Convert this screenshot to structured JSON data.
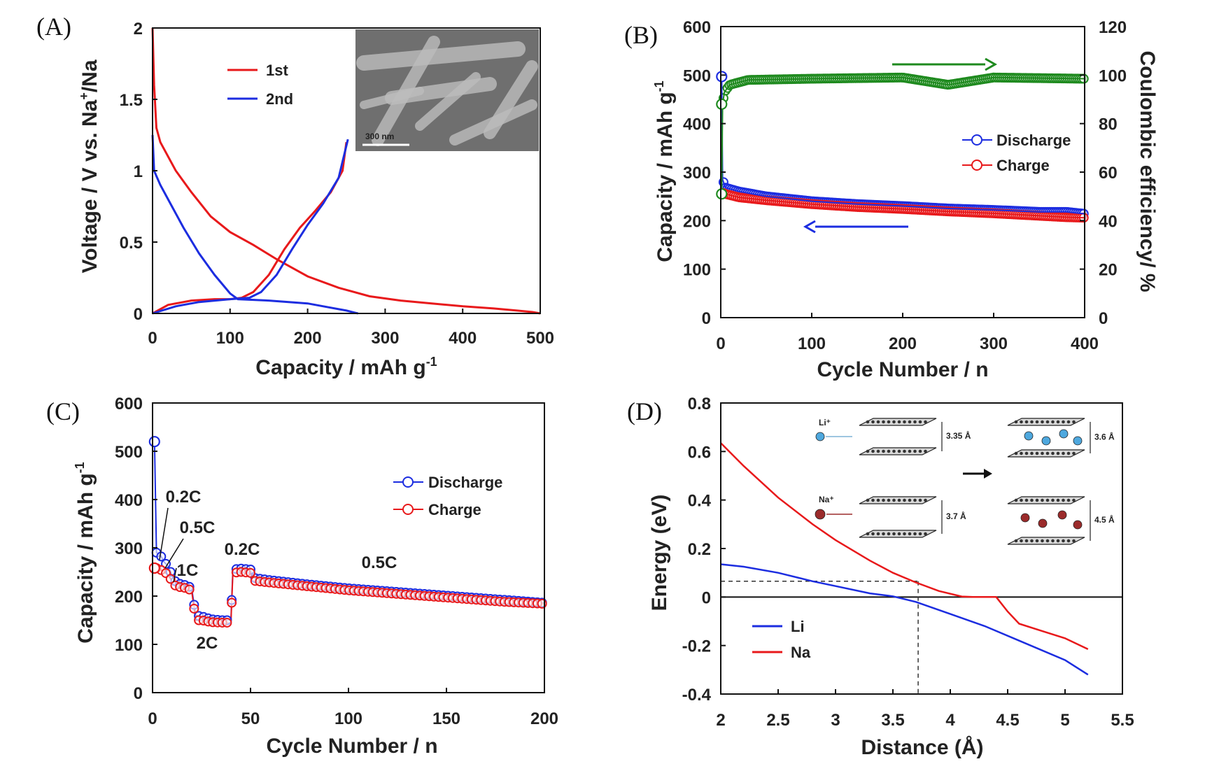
{
  "colors": {
    "red": "#e8191b",
    "blue": "#1c2de0",
    "green": "#1e8a1e",
    "axis": "#111111"
  },
  "chart_data": [
    {
      "panel": "(A)",
      "type": "line",
      "xlabel": "Capacity / mAh g",
      "xlabel_sup": "-1",
      "ylabel": "Voltage / V vs. Na",
      "ylabel_sup": "+",
      "ylabel_tail": "/Na",
      "xlim": [
        0,
        500
      ],
      "ylim": [
        0,
        2
      ],
      "xticks": [
        "0",
        "100",
        "200",
        "300",
        "400",
        "500"
      ],
      "yticks": [
        "0",
        "0.5",
        "1",
        "1.5",
        "2"
      ],
      "legend": [
        "1st",
        "2nd"
      ],
      "inset_label": "300 nm",
      "series": [
        {
          "name": "1st discharge",
          "color": "red",
          "points": [
            [
              0,
              2.0
            ],
            [
              2,
              1.6
            ],
            [
              5,
              1.3
            ],
            [
              10,
              1.2
            ],
            [
              30,
              1.0
            ],
            [
              50,
              0.85
            ],
            [
              75,
              0.68
            ],
            [
              100,
              0.57
            ],
            [
              130,
              0.48
            ],
            [
              160,
              0.38
            ],
            [
              200,
              0.26
            ],
            [
              240,
              0.18
            ],
            [
              280,
              0.12
            ],
            [
              320,
              0.09
            ],
            [
              360,
              0.07
            ],
            [
              400,
              0.05
            ],
            [
              440,
              0.035
            ],
            [
              470,
              0.02
            ],
            [
              490,
              0.01
            ],
            [
              500,
              0.0
            ]
          ]
        },
        {
          "name": "1st charge",
          "color": "red",
          "points": [
            [
              0,
              0.0
            ],
            [
              20,
              0.06
            ],
            [
              50,
              0.09
            ],
            [
              80,
              0.1
            ],
            [
              100,
              0.1
            ],
            [
              115,
              0.11
            ],
            [
              130,
              0.15
            ],
            [
              150,
              0.27
            ],
            [
              170,
              0.45
            ],
            [
              190,
              0.6
            ],
            [
              210,
              0.72
            ],
            [
              230,
              0.85
            ],
            [
              245,
              1.0
            ],
            [
              250,
              1.2
            ]
          ]
        },
        {
          "name": "2nd discharge",
          "color": "blue",
          "points": [
            [
              0,
              1.25
            ],
            [
              2,
              1.0
            ],
            [
              10,
              0.9
            ],
            [
              25,
              0.75
            ],
            [
              40,
              0.6
            ],
            [
              60,
              0.42
            ],
            [
              80,
              0.27
            ],
            [
              100,
              0.14
            ],
            [
              110,
              0.1
            ],
            [
              150,
              0.09
            ],
            [
              200,
              0.07
            ],
            [
              230,
              0.04
            ],
            [
              250,
              0.02
            ],
            [
              265,
              0.0
            ]
          ]
        },
        {
          "name": "2nd charge",
          "color": "blue",
          "points": [
            [
              0,
              0.0
            ],
            [
              30,
              0.05
            ],
            [
              60,
              0.08
            ],
            [
              100,
              0.1
            ],
            [
              125,
              0.11
            ],
            [
              140,
              0.15
            ],
            [
              160,
              0.27
            ],
            [
              180,
              0.45
            ],
            [
              200,
              0.62
            ],
            [
              220,
              0.77
            ],
            [
              240,
              0.95
            ],
            [
              252,
              1.22
            ]
          ]
        }
      ]
    },
    {
      "panel": "(B)",
      "type": "scatter",
      "xlabel": "Cycle Number / n",
      "ylabel": "Capacity / mAh g",
      "ylabel_sup": "-1",
      "y2label": "Coulombic efficiency/ %",
      "xlim": [
        0,
        400
      ],
      "ylim": [
        0,
        600
      ],
      "y2lim": [
        0,
        120
      ],
      "xticks": [
        "0",
        "100",
        "200",
        "300",
        "400"
      ],
      "yticks": [
        "0",
        "100",
        "200",
        "300",
        "400",
        "500",
        "600"
      ],
      "y2ticks": [
        "0",
        "20",
        "40",
        "60",
        "80",
        "100",
        "120"
      ],
      "legend": [
        "Discharge",
        "Charge"
      ],
      "series": [
        {
          "name": "Discharge",
          "color": "blue",
          "points": [
            [
              1,
              497
            ],
            [
              2,
              285
            ],
            [
              5,
              268
            ],
            [
              20,
              260
            ],
            [
              50,
              250
            ],
            [
              100,
              240
            ],
            [
              150,
              234
            ],
            [
              200,
              230
            ],
            [
              250,
              225
            ],
            [
              300,
              222
            ],
            [
              350,
              218
            ],
            [
              380,
              218
            ],
            [
              400,
              214
            ]
          ]
        },
        {
          "name": "Charge",
          "color": "red",
          "points": [
            [
              1,
              255
            ],
            [
              2,
              258
            ],
            [
              5,
              255
            ],
            [
              20,
              248
            ],
            [
              50,
              242
            ],
            [
              100,
              234
            ],
            [
              150,
              228
            ],
            [
              200,
              224
            ],
            [
              250,
              219
            ],
            [
              300,
              215
            ],
            [
              350,
              210
            ],
            [
              380,
              207
            ],
            [
              400,
              206
            ]
          ]
        },
        {
          "name": "Coulombic efficiency",
          "color": "green",
          "axis": "y2",
          "points": [
            [
              1,
              51
            ],
            [
              2,
              88
            ],
            [
              4,
              93
            ],
            [
              10,
              96
            ],
            [
              30,
              98
            ],
            [
              100,
              98.5
            ],
            [
              200,
              99
            ],
            [
              250,
              96
            ],
            [
              300,
              99
            ],
            [
              400,
              98.5
            ]
          ]
        }
      ]
    },
    {
      "panel": "(C)",
      "type": "scatter",
      "xlabel": "Cycle Number / n",
      "ylabel": "Capacity / mAh g",
      "ylabel_sup": "-1",
      "xlim": [
        0,
        200
      ],
      "ylim": [
        0,
        600
      ],
      "xticks": [
        "0",
        "50",
        "100",
        "150",
        "200"
      ],
      "yticks": [
        "0",
        "100",
        "200",
        "300",
        "400",
        "500",
        "600"
      ],
      "legend": [
        "Discharge",
        "Charge"
      ],
      "annotations": [
        "0.2C",
        "0.5C",
        "1C",
        "2C",
        "0.2C",
        "0.5C"
      ],
      "series": [
        {
          "name": "Discharge",
          "color": "blue",
          "points": [
            [
              1,
              520
            ],
            [
              2,
              290
            ],
            [
              4,
              285
            ],
            [
              6,
              270
            ],
            [
              8,
              262
            ],
            [
              10,
              242
            ],
            [
              12,
              228
            ],
            [
              15,
              224
            ],
            [
              18,
              222
            ],
            [
              20,
              215
            ],
            [
              22,
              160
            ],
            [
              25,
              158
            ],
            [
              30,
              152
            ],
            [
              35,
              150
            ],
            [
              40,
              150
            ],
            [
              41,
              255
            ],
            [
              45,
              257
            ],
            [
              50,
              255
            ],
            [
              51,
              238
            ],
            [
              60,
              233
            ],
            [
              80,
              224
            ],
            [
              100,
              216
            ],
            [
              120,
              210
            ],
            [
              140,
              204
            ],
            [
              160,
              198
            ],
            [
              180,
              192
            ],
            [
              200,
              186
            ]
          ]
        },
        {
          "name": "Charge",
          "color": "red",
          "points": [
            [
              1,
              258
            ],
            [
              2,
              258
            ],
            [
              4,
              255
            ],
            [
              6,
              250
            ],
            [
              8,
              244
            ],
            [
              10,
              230
            ],
            [
              12,
              220
            ],
            [
              15,
              218
            ],
            [
              18,
              216
            ],
            [
              20,
              210
            ],
            [
              22,
              150
            ],
            [
              25,
              150
            ],
            [
              30,
              146
            ],
            [
              35,
              145
            ],
            [
              40,
              145
            ],
            [
              41,
              248
            ],
            [
              45,
              250
            ],
            [
              50,
              248
            ],
            [
              51,
              232
            ],
            [
              60,
              228
            ],
            [
              80,
              220
            ],
            [
              100,
              212
            ],
            [
              120,
              206
            ],
            [
              140,
              200
            ],
            [
              160,
              194
            ],
            [
              180,
              188
            ],
            [
              200,
              184
            ]
          ]
        }
      ]
    },
    {
      "panel": "(D)",
      "type": "line",
      "xlabel": "Distance (Å)",
      "ylabel": "Energy (eV)",
      "xlim": [
        2,
        5.5
      ],
      "ylim": [
        -0.4,
        0.8
      ],
      "xticks": [
        "2",
        "2.5",
        "3",
        "3.5",
        "4",
        "4.5",
        "5",
        "5.5"
      ],
      "yticks": [
        "-0.4",
        "-0.2",
        "0",
        "0.2",
        "0.4",
        "0.6",
        "0.8"
      ],
      "legend": [
        "Li",
        "Na"
      ],
      "reference_line": {
        "x": 3.72,
        "y": 0.065
      },
      "inset": {
        "li_label": "Li⁺",
        "na_label": "Na⁺",
        "spacings": [
          "3.35 Å",
          "3.6 Å",
          "3.7 Å",
          "4.5 Å"
        ]
      },
      "series": [
        {
          "name": "Li",
          "color": "blue",
          "points": [
            [
              2.0,
              0.135
            ],
            [
              2.2,
              0.125
            ],
            [
              2.5,
              0.1
            ],
            [
              2.8,
              0.065
            ],
            [
              3.0,
              0.045
            ],
            [
              3.3,
              0.015
            ],
            [
              3.5,
              0.003
            ],
            [
              3.7,
              -0.02
            ],
            [
              4.0,
              -0.07
            ],
            [
              4.3,
              -0.12
            ],
            [
              4.6,
              -0.18
            ],
            [
              5.0,
              -0.26
            ],
            [
              5.2,
              -0.32
            ]
          ]
        },
        {
          "name": "Na",
          "color": "red",
          "points": [
            [
              2.0,
              0.635
            ],
            [
              2.2,
              0.54
            ],
            [
              2.5,
              0.41
            ],
            [
              2.8,
              0.3
            ],
            [
              3.0,
              0.235
            ],
            [
              3.3,
              0.15
            ],
            [
              3.5,
              0.1
            ],
            [
              3.7,
              0.06
            ],
            [
              3.9,
              0.025
            ],
            [
              4.1,
              0.002
            ],
            [
              4.2,
              0.0
            ],
            [
              4.4,
              0.0
            ],
            [
              4.5,
              -0.06
            ],
            [
              4.6,
              -0.11
            ],
            [
              4.8,
              -0.14
            ],
            [
              5.0,
              -0.17
            ],
            [
              5.2,
              -0.215
            ]
          ]
        }
      ]
    }
  ]
}
